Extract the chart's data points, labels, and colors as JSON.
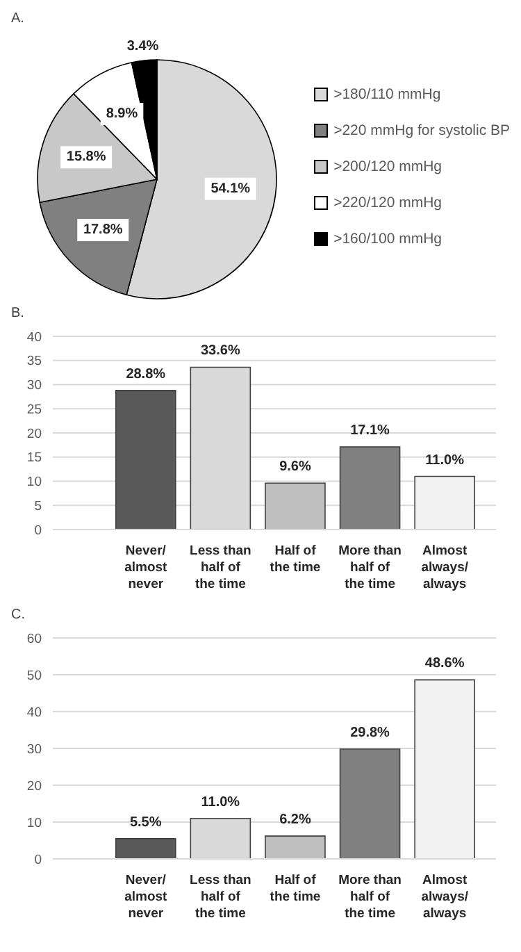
{
  "chart_data": [
    {
      "type": "pie",
      "title": "A.",
      "categories": [
        ">180/110 mmHg",
        ">220 mmHg for systolic BP",
        ">200/120 mmHg",
        ">220/120 mmHg",
        ">160/100 mmHg"
      ],
      "values": [
        54.1,
        17.8,
        15.8,
        8.9,
        3.4
      ],
      "colors": [
        "#d9d9d9",
        "#808080",
        "#c8c8c8",
        "#ffffff",
        "#000000"
      ],
      "value_labels": [
        "54.1%",
        "17.8%",
        "15.8%",
        "8.9%",
        "3.4%"
      ],
      "legend": "right"
    },
    {
      "type": "bar",
      "title": "B.",
      "categories": [
        "Never/ almost never",
        "Less than half of the time",
        "Half of the time",
        "More than half of the time",
        "Almost always/ always"
      ],
      "values": [
        28.8,
        33.6,
        9.6,
        17.1,
        11.0
      ],
      "colors": [
        "#595959",
        "#d9d9d9",
        "#bfbfbf",
        "#808080",
        "#f2f2f2"
      ],
      "value_labels": [
        "28.8%",
        "33.6%",
        "9.6%",
        "17.1%",
        "11.0%"
      ],
      "ylim": [
        0,
        40
      ],
      "yticks": [
        0,
        5,
        10,
        15,
        20,
        25,
        30,
        35,
        40
      ],
      "grid": "y",
      "legend": false
    },
    {
      "type": "bar",
      "title": "C.",
      "categories": [
        "Never/ almost never",
        "Less than half of the time",
        "Half of the time",
        "More than half of the time",
        "Almost always/ always"
      ],
      "values": [
        5.5,
        11.0,
        6.2,
        29.8,
        48.6
      ],
      "colors": [
        "#595959",
        "#d9d9d9",
        "#bfbfbf",
        "#808080",
        "#f2f2f2"
      ],
      "value_labels": [
        "5.5%",
        "11.0%",
        "6.2%",
        "29.8%",
        "48.6%"
      ],
      "ylim": [
        0,
        60
      ],
      "yticks": [
        0,
        10,
        20,
        30,
        40,
        50,
        60
      ],
      "grid": "y",
      "legend": false
    }
  ]
}
